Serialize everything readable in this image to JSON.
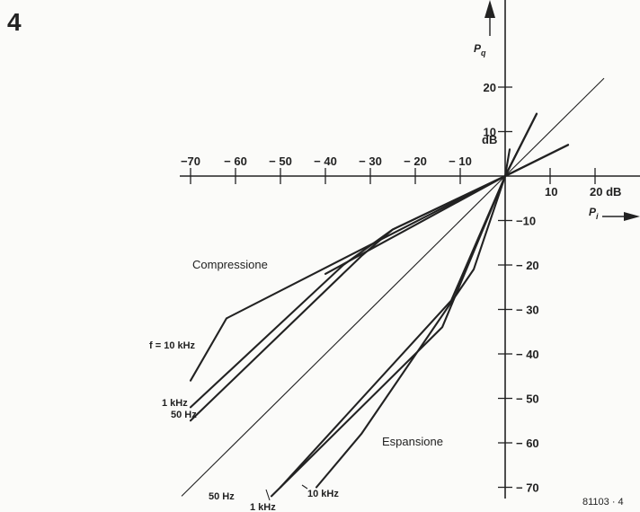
{
  "figure_number": "4",
  "figure_code": "81103 · 4",
  "colors": {
    "ink": "#222222",
    "background": "#fbfbf9"
  },
  "chart_data": {
    "type": "line",
    "x_axis": {
      "label_main": "P",
      "label_sub": "i",
      "unit": "dB",
      "range": [
        -70,
        20
      ],
      "ticks": [
        -70,
        -60,
        -50,
        -40,
        -30,
        -20,
        -10,
        10,
        20
      ],
      "tick_labels": [
        "−70",
        "− 60",
        "− 50",
        "− 40",
        "− 30",
        "− 20",
        "− 10",
        "10",
        "20 dB"
      ]
    },
    "y_axis": {
      "label_main": "P",
      "label_sub": "q",
      "unit": "dB",
      "range": [
        -70,
        20
      ],
      "ticks": [
        20,
        10,
        -10,
        -20,
        -30,
        -40,
        -50,
        -60,
        -70
      ],
      "tick_labels": [
        "20",
        "10",
        "−10",
        "− 20",
        "− 30",
        "− 40",
        "− 50",
        "− 60",
        "− 70"
      ],
      "unit_label": "dB"
    },
    "reference_line": {
      "x": [
        -72,
        22
      ],
      "y": [
        -72,
        22
      ]
    },
    "series": [
      {
        "name": "10 kHz",
        "group": "compressione",
        "x": [
          -70,
          -62,
          0,
          14
        ],
        "y": [
          -46,
          -32,
          0,
          7
        ]
      },
      {
        "name": "1 kHz",
        "group": "compressione",
        "x": [
          -70,
          -36,
          -25,
          0,
          14
        ],
        "y": [
          -52,
          -20,
          -12,
          0,
          7
        ]
      },
      {
        "name": "50 Hz",
        "group": "compressione",
        "x": [
          -70,
          -32,
          -25,
          0,
          14
        ],
        "y": [
          -55,
          -18,
          -12,
          0,
          7
        ]
      },
      {
        "name": "50 Hz",
        "group": "espansione",
        "x": [
          -52,
          -14,
          0,
          7
        ],
        "y": [
          -72,
          -34,
          0,
          14
        ]
      },
      {
        "name": "1 kHz",
        "group": "espansione",
        "x": [
          -50,
          -12,
          0,
          7
        ],
        "y": [
          -70,
          -28,
          0,
          14
        ]
      },
      {
        "name": "10 kHz",
        "group": "espansione",
        "x": [
          -42,
          -32,
          -7,
          0,
          7
        ],
        "y": [
          -70,
          -58,
          -21,
          0,
          14
        ]
      },
      {
        "name": "",
        "group": "compressione",
        "x": [
          -40,
          0,
          1
        ],
        "y": [
          -22,
          0,
          6
        ]
      }
    ],
    "annotations": {
      "compressione": "Compressione",
      "espansione": "Espansione",
      "comp_10k": "f = 10 kHz",
      "comp_1k": "1 kHz",
      "comp_50": "50 Hz",
      "exp_50": "50 Hz",
      "exp_1k": "1 kHz",
      "exp_10k": "10 kHz"
    }
  }
}
